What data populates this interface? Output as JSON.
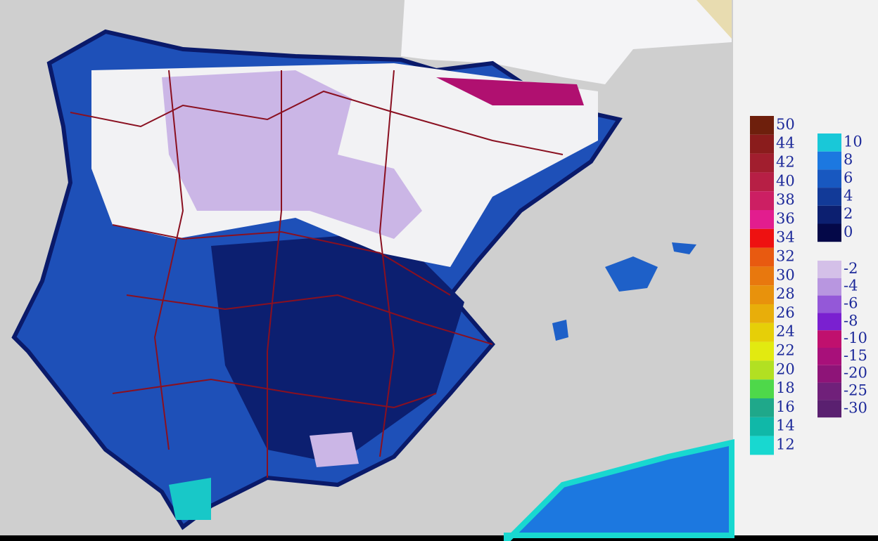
{
  "legend": {
    "warm": [
      {
        "label": "50",
        "color": "#6e1f0c"
      },
      {
        "label": "44",
        "color": "#8a1c1c"
      },
      {
        "label": "42",
        "color": "#a11e2e"
      },
      {
        "label": "40",
        "color": "#b71f45"
      },
      {
        "label": "38",
        "color": "#cc1f63"
      },
      {
        "label": "36",
        "color": "#e21d8e"
      },
      {
        "label": "34",
        "color": "#ee1111"
      },
      {
        "label": "32",
        "color": "#e85a10"
      },
      {
        "label": "30",
        "color": "#e8780e"
      },
      {
        "label": "28",
        "color": "#e8920c"
      },
      {
        "label": "26",
        "color": "#e8ae0a"
      },
      {
        "label": "24",
        "color": "#e6cf08"
      },
      {
        "label": "22",
        "color": "#e2ea10"
      },
      {
        "label": "20",
        "color": "#b2e022"
      },
      {
        "label": "18",
        "color": "#4ed84a"
      },
      {
        "label": "16",
        "color": "#1fa88a"
      },
      {
        "label": "14",
        "color": "#10b8a8"
      },
      {
        "label": "12",
        "color": "#18d8d0"
      }
    ],
    "cool": [
      {
        "label": "10",
        "color": "#19c8d8"
      },
      {
        "label": "8",
        "color": "#1c78e0"
      },
      {
        "label": "6",
        "color": "#1858c0"
      },
      {
        "label": "4",
        "color": "#123a98"
      },
      {
        "label": "2",
        "color": "#0c1f70"
      },
      {
        "label": "0",
        "color": "#040848"
      }
    ],
    "cold": [
      {
        "label": "-2",
        "color": "#d4c0e8"
      },
      {
        "label": "-4",
        "color": "#b896e0"
      },
      {
        "label": "-6",
        "color": "#9458d8"
      },
      {
        "label": "-8",
        "color": "#7a20d0"
      },
      {
        "label": "-10",
        "color": "#c0106e"
      },
      {
        "label": "-15",
        "color": "#a8107a"
      },
      {
        "label": "-20",
        "color": "#8e1478"
      },
      {
        "label": "-25",
        "color": "#70207a"
      },
      {
        "label": "-30",
        "color": "#5a2070"
      }
    ]
  }
}
